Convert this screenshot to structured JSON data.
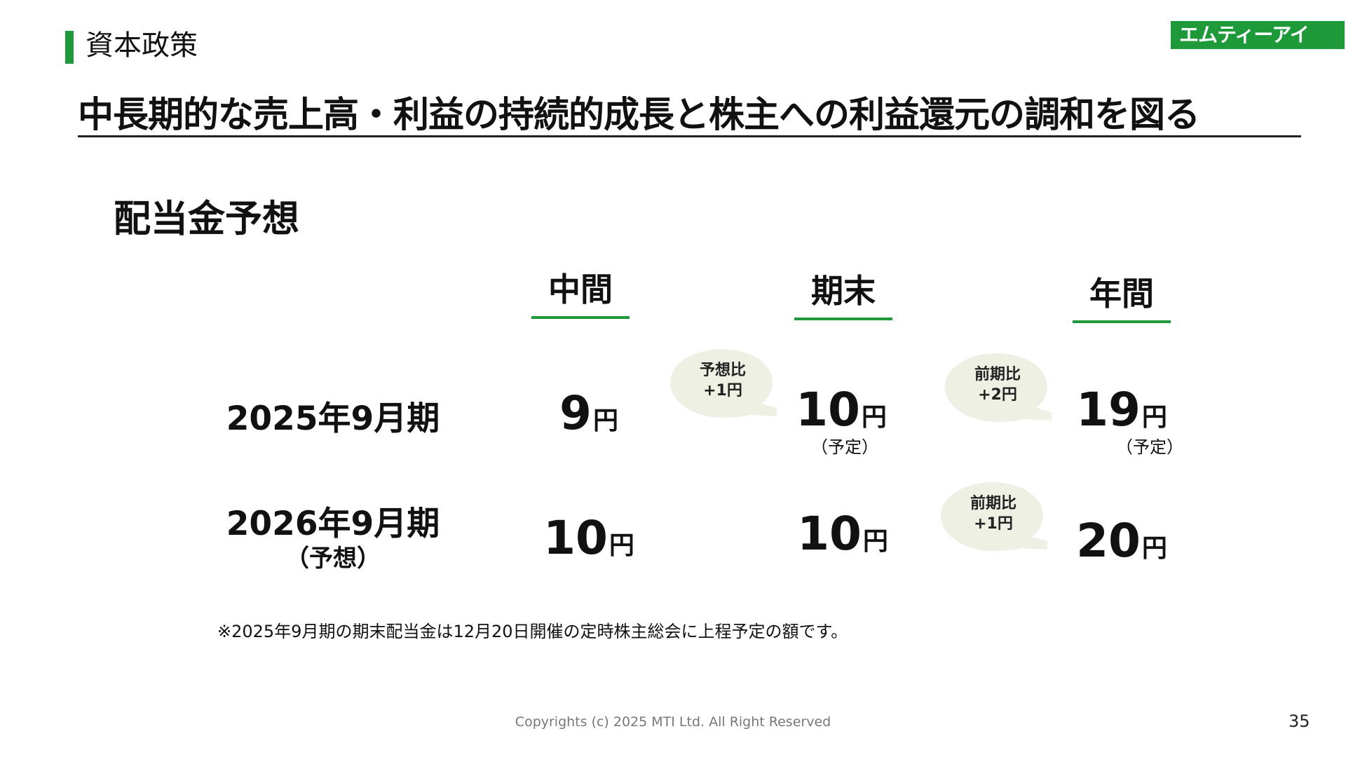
{
  "header": {
    "section_title": "資本政策",
    "logo_text": "エムティーアイ",
    "headline": "中長期的な売上高・利益の持続的成長と株主への利益還元の調和を図る"
  },
  "subheading": "配当金予想",
  "columns": {
    "interim": "中間",
    "year_end": "期末",
    "annual": "年間"
  },
  "rows": [
    {
      "label": "2025年9月期",
      "interim": {
        "value": "9",
        "unit": "円"
      },
      "year_end": {
        "value": "10",
        "unit": "円",
        "note": "（予定）"
      },
      "annual": {
        "value": "19",
        "unit": "円",
        "note": "（予定）"
      },
      "bubble_year_end": {
        "line1": "予想比",
        "line2": "+1円"
      },
      "bubble_annual": {
        "line1": "前期比",
        "line2": "+2円"
      }
    },
    {
      "label": "2026年9月期",
      "sublabel": "（予想）",
      "interim": {
        "value": "10",
        "unit": "円"
      },
      "year_end": {
        "value": "10",
        "unit": "円"
      },
      "annual": {
        "value": "20",
        "unit": "円"
      },
      "bubble_annual": {
        "line1": "前期比",
        "line2": "+1円"
      }
    }
  ],
  "footnote": "※2025年9月期の期末配当金は12月20日開催の定時株主総会に上程予定の額です。",
  "footer": {
    "copyright": "Copyrights (c) 2025 MTI Ltd. All Right Reserved",
    "page_number": "35"
  },
  "colors": {
    "accent": "#1f9a3a",
    "bubble": "#eef0e4"
  }
}
